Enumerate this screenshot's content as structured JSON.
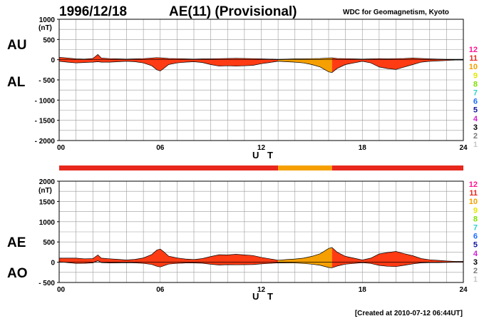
{
  "header": {
    "date": "1996/12/18",
    "title": "AE(11) (Provisional)",
    "organization": "WDC for Geomagnetism, Kyoto"
  },
  "footer": {
    "created": "[Created at 2010-07-12 06:44UT]"
  },
  "legend_levels": [
    {
      "label": "12",
      "color": "#ff1493"
    },
    {
      "label": "11",
      "color": "#e8271d"
    },
    {
      "label": "10",
      "color": "#f5a000"
    },
    {
      "label": "9",
      "color": "#e6e600"
    },
    {
      "label": "8",
      "color": "#80e000"
    },
    {
      "label": "7",
      "color": "#30d0d0"
    },
    {
      "label": "6",
      "color": "#1e6cff"
    },
    {
      "label": "5",
      "color": "#1414a0"
    },
    {
      "label": "4",
      "color": "#d020d0"
    },
    {
      "label": "3",
      "color": "#000000"
    },
    {
      "label": "2",
      "color": "#7a7a7a"
    },
    {
      "label": "1",
      "color": "#c8c8c8"
    }
  ],
  "station_bar": {
    "segments": [
      {
        "from": 0,
        "to": 13,
        "level": "11",
        "color": "#e8271d"
      },
      {
        "from": 13,
        "to": 16.2,
        "level": "10",
        "color": "#f5a000"
      },
      {
        "from": 16.2,
        "to": 24,
        "level": "11",
        "color": "#e8271d"
      }
    ]
  },
  "colors": {
    "fill_main": "#ff3b14",
    "fill_partial": "#f5a000",
    "bar_main": "#e8271d",
    "bar_partial": "#f5a000"
  },
  "chart_data": [
    {
      "type": "area",
      "panel": "AU/AL",
      "side_labels": [
        "AU",
        "AL"
      ],
      "y_unit": "(nT)",
      "ylim": [
        -2000,
        1000
      ],
      "yticks": [
        "1000",
        "500",
        "0",
        "- 500",
        "- 1000",
        "- 1500",
        "- 2000"
      ],
      "ytick_values": [
        1000,
        500,
        0,
        -500,
        -1000,
        -1500,
        -2000
      ],
      "xlim": [
        0,
        24
      ],
      "xticks": [
        "00",
        "06",
        "12",
        "18",
        "24"
      ],
      "xtick_values": [
        0,
        6,
        12,
        18,
        24
      ],
      "xlabel": "U T",
      "grid": true,
      "partial_range": [
        13,
        16.2
      ],
      "x": [
        0,
        0.5,
        1,
        1.5,
        2,
        2.3,
        2.5,
        3,
        3.5,
        4,
        4.5,
        5,
        5.5,
        5.8,
        6,
        6.2,
        6.5,
        7,
        7.5,
        8,
        8.5,
        9,
        9.5,
        10,
        10.5,
        11,
        11.5,
        12,
        12.5,
        13,
        13.5,
        14,
        14.5,
        15,
        15.5,
        16,
        16.2,
        16.5,
        17,
        17.5,
        18,
        18.5,
        19,
        19.5,
        20,
        20.5,
        21,
        21.5,
        22,
        22.5,
        23,
        23.5,
        24
      ],
      "series": [
        {
          "name": "AU",
          "values": [
            60,
            40,
            20,
            15,
            30,
            130,
            40,
            25,
            20,
            15,
            20,
            25,
            40,
            50,
            45,
            40,
            30,
            25,
            20,
            15,
            20,
            20,
            25,
            30,
            35,
            30,
            25,
            20,
            15,
            10,
            15,
            20,
            20,
            25,
            30,
            40,
            45,
            30,
            25,
            20,
            15,
            20,
            25,
            20,
            25,
            30,
            40,
            30,
            20,
            15,
            10,
            10,
            10
          ]
        },
        {
          "name": "AL",
          "values": [
            -40,
            -60,
            -80,
            -70,
            -60,
            -50,
            -60,
            -60,
            -50,
            -40,
            -50,
            -80,
            -150,
            -250,
            -280,
            -220,
            -120,
            -80,
            -60,
            -50,
            -70,
            -120,
            -160,
            -150,
            -160,
            -150,
            -140,
            -100,
            -70,
            -40,
            -50,
            -60,
            -80,
            -120,
            -180,
            -300,
            -320,
            -220,
            -120,
            -80,
            -40,
            -80,
            -180,
            -220,
            -240,
            -180,
            -120,
            -60,
            -40,
            -30,
            -20,
            -10,
            -10
          ]
        }
      ]
    },
    {
      "type": "area",
      "panel": "AE/AO",
      "side_labels": [
        "AE",
        "AO"
      ],
      "y_unit": "(nT)",
      "ylim": [
        -500,
        2000
      ],
      "yticks": [
        "2000",
        "1500",
        "1000",
        "500",
        "0",
        "- 500"
      ],
      "ytick_values": [
        2000,
        1500,
        1000,
        500,
        0,
        -500
      ],
      "xlim": [
        0,
        24
      ],
      "xticks": [
        "00",
        "06",
        "12",
        "18",
        "24"
      ],
      "xtick_values": [
        0,
        6,
        12,
        18,
        24
      ],
      "xlabel": "U T",
      "grid": true,
      "partial_range": [
        13,
        16.2
      ],
      "x": [
        0,
        0.5,
        1,
        1.5,
        2,
        2.3,
        2.5,
        3,
        3.5,
        4,
        4.5,
        5,
        5.5,
        5.8,
        6,
        6.2,
        6.5,
        7,
        7.5,
        8,
        8.5,
        9,
        9.5,
        10,
        10.5,
        11,
        11.5,
        12,
        12.5,
        13,
        13.5,
        14,
        14.5,
        15,
        15.5,
        16,
        16.2,
        16.5,
        17,
        17.5,
        18,
        18.5,
        19,
        19.5,
        20,
        20.5,
        21,
        21.5,
        22,
        22.5,
        23,
        23.5,
        24
      ],
      "series": [
        {
          "name": "AE",
          "values": [
            100,
            100,
            100,
            85,
            90,
            180,
            100,
            85,
            70,
            55,
            70,
            105,
            190,
            300,
            325,
            260,
            150,
            105,
            80,
            65,
            90,
            140,
            185,
            180,
            195,
            180,
            165,
            120,
            85,
            50,
            65,
            80,
            100,
            145,
            210,
            340,
            365,
            250,
            145,
            100,
            55,
            100,
            205,
            240,
            265,
            210,
            160,
            90,
            60,
            45,
            30,
            20,
            20
          ]
        },
        {
          "name": "AO",
          "values": [
            10,
            -10,
            -30,
            -28,
            -15,
            40,
            -10,
            -18,
            -15,
            -13,
            -15,
            -28,
            -55,
            -100,
            -118,
            -90,
            -45,
            -28,
            -20,
            -18,
            -25,
            -50,
            -68,
            -60,
            -63,
            -60,
            -58,
            -40,
            -28,
            -15,
            -18,
            -20,
            -30,
            -48,
            -75,
            -130,
            -138,
            -95,
            -48,
            -30,
            -13,
            -30,
            -78,
            -100,
            -108,
            -75,
            -40,
            -15,
            -10,
            -8,
            -5,
            0,
            0
          ]
        }
      ]
    }
  ]
}
